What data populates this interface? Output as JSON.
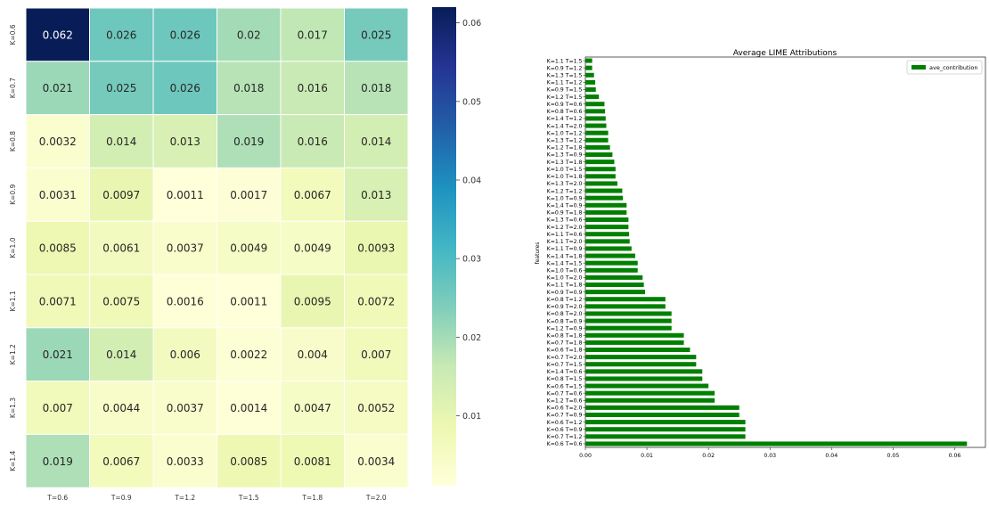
{
  "chart_data": [
    {
      "type": "heatmap",
      "title": "",
      "rows": [
        "K=0.6",
        "K=0.7",
        "K=0.8",
        "K=0.9",
        "K=1.0",
        "K=1.1",
        "K=1.2",
        "K=1.3",
        "K=1.4"
      ],
      "cols": [
        "T=0.6",
        "T=0.9",
        "T=1.2",
        "T=1.5",
        "T=1.8",
        "T=2.0"
      ],
      "values": [
        [
          0.062,
          0.026,
          0.026,
          0.02,
          0.017,
          0.025
        ],
        [
          0.021,
          0.025,
          0.026,
          0.018,
          0.016,
          0.018
        ],
        [
          0.0032,
          0.014,
          0.013,
          0.019,
          0.016,
          0.014
        ],
        [
          0.0031,
          0.0097,
          0.0011,
          0.0017,
          0.0067,
          0.013
        ],
        [
          0.0085,
          0.0061,
          0.0037,
          0.0049,
          0.0049,
          0.0093
        ],
        [
          0.0071,
          0.0075,
          0.0016,
          0.0011,
          0.0095,
          0.0072
        ],
        [
          0.021,
          0.014,
          0.006,
          0.0022,
          0.004,
          0.007
        ],
        [
          0.007,
          0.0044,
          0.0037,
          0.0014,
          0.0047,
          0.0052
        ],
        [
          0.019,
          0.0067,
          0.0033,
          0.0085,
          0.0081,
          0.0034
        ]
      ],
      "colorbar": {
        "ticks": [
          "0.01",
          "0.02",
          "0.03",
          "0.04",
          "0.05",
          "0.06"
        ],
        "range": [
          0.0011,
          0.062
        ],
        "colormap": "YlGnBu"
      }
    },
    {
      "type": "bar",
      "orientation": "horizontal",
      "title": "Average LIME Attributions",
      "xlabel": "",
      "ylabel": "features",
      "xlim": [
        0.0,
        0.065
      ],
      "xticks": [
        "0.00",
        "0.01",
        "0.02",
        "0.03",
        "0.04",
        "0.05",
        "0.06"
      ],
      "legend": {
        "position": "top-right",
        "label": "ave_contribution"
      },
      "bar_color": "#008000",
      "categories": [
        "K=1.1 T=1.5",
        "K=0.9 T=1.2",
        "K=1.3 T=1.5",
        "K=1.1 T=1.2",
        "K=0.9 T=1.5",
        "K=1.2 T=1.5",
        "K=0.9 T=0.6",
        "K=0.8 T=0.6",
        "K=1.4 T=1.2",
        "K=1.4 T=2.0",
        "K=1.0 T=1.2",
        "K=1.3 T=1.2",
        "K=1.2 T=1.8",
        "K=1.3 T=0.9",
        "K=1.3 T=1.8",
        "K=1.0 T=1.5",
        "K=1.0 T=1.8",
        "K=1.3 T=2.0",
        "K=1.2 T=1.2",
        "K=1.0 T=0.9",
        "K=1.4 T=0.9",
        "K=0.9 T=1.8",
        "K=1.3 T=0.6",
        "K=1.2 T=2.0",
        "K=1.1 T=0.6",
        "K=1.1 T=2.0",
        "K=1.1 T=0.9",
        "K=1.4 T=1.8",
        "K=1.4 T=1.5",
        "K=1.0 T=0.6",
        "K=1.0 T=2.0",
        "K=1.1 T=1.8",
        "K=0.9 T=0.9",
        "K=0.8 T=1.2",
        "K=0.9 T=2.0",
        "K=0.8 T=2.0",
        "K=0.8 T=0.9",
        "K=1.2 T=0.9",
        "K=0.8 T=1.8",
        "K=0.7 T=1.8",
        "K=0.6 T=1.8",
        "K=0.7 T=2.0",
        "K=0.7 T=1.5",
        "K=1.4 T=0.6",
        "K=0.8 T=1.5",
        "K=0.6 T=1.5",
        "K=0.7 T=0.6",
        "K=1.2 T=0.6",
        "K=0.6 T=2.0",
        "K=0.7 T=0.9",
        "K=0.6 T=1.2",
        "K=0.6 T=0.9",
        "K=0.7 T=1.2",
        "K=0.6 T=0.6"
      ],
      "values": [
        0.0011,
        0.0011,
        0.0014,
        0.0016,
        0.0017,
        0.0022,
        0.0031,
        0.0032,
        0.0033,
        0.0034,
        0.0037,
        0.0037,
        0.004,
        0.0044,
        0.0047,
        0.0049,
        0.0049,
        0.0052,
        0.006,
        0.0061,
        0.0067,
        0.0067,
        0.007,
        0.007,
        0.0071,
        0.0072,
        0.0075,
        0.0081,
        0.0085,
        0.0085,
        0.0093,
        0.0095,
        0.0097,
        0.013,
        0.013,
        0.014,
        0.014,
        0.014,
        0.016,
        0.016,
        0.017,
        0.018,
        0.018,
        0.019,
        0.019,
        0.02,
        0.021,
        0.021,
        0.025,
        0.025,
        0.026,
        0.026,
        0.026,
        0.062
      ]
    }
  ]
}
